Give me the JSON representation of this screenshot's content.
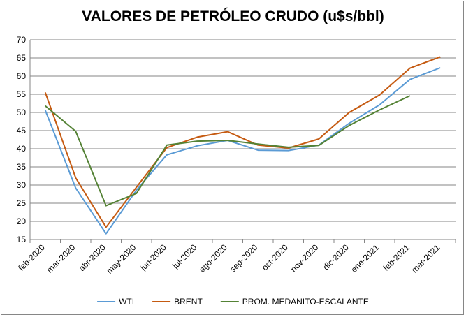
{
  "chart_data": {
    "type": "line",
    "title": "VALORES DE PETRÓLEO CRUDO (u$s/bbl)",
    "xlabel": "",
    "ylabel": "",
    "ylim": [
      15,
      70
    ],
    "ytick_step": 5,
    "grid": true,
    "legend_position": "bottom",
    "categories": [
      "feb-2020",
      "mar-2020",
      "abr-2020",
      "may-2020",
      "jun-2020",
      "jul-2020",
      "ago-2020",
      "sep-2020",
      "oct-2020",
      "nov-2020",
      "dic-2020",
      "ene-2021",
      "feb-2021",
      "mar-2021"
    ],
    "series": [
      {
        "name": "WTI",
        "color": "#5B9BD5",
        "values": [
          50.6,
          29.2,
          16.6,
          28.6,
          38.3,
          40.8,
          42.3,
          39.6,
          39.5,
          41.0,
          47.0,
          52.1,
          59.1,
          62.3
        ]
      },
      {
        "name": "BRENT",
        "color": "#C55A11",
        "values": [
          55.5,
          32.0,
          18.4,
          29.4,
          40.3,
          43.2,
          44.7,
          41.0,
          40.2,
          42.7,
          50.0,
          54.8,
          62.2,
          65.3
        ]
      },
      {
        "name": "PROM. MEDANITO-ESCALANTE",
        "color": "#548235",
        "values": [
          51.8,
          44.8,
          24.3,
          27.7,
          41.0,
          42.1,
          42.3,
          41.3,
          40.4,
          40.9,
          46.4,
          50.7,
          54.6,
          null
        ]
      }
    ]
  }
}
